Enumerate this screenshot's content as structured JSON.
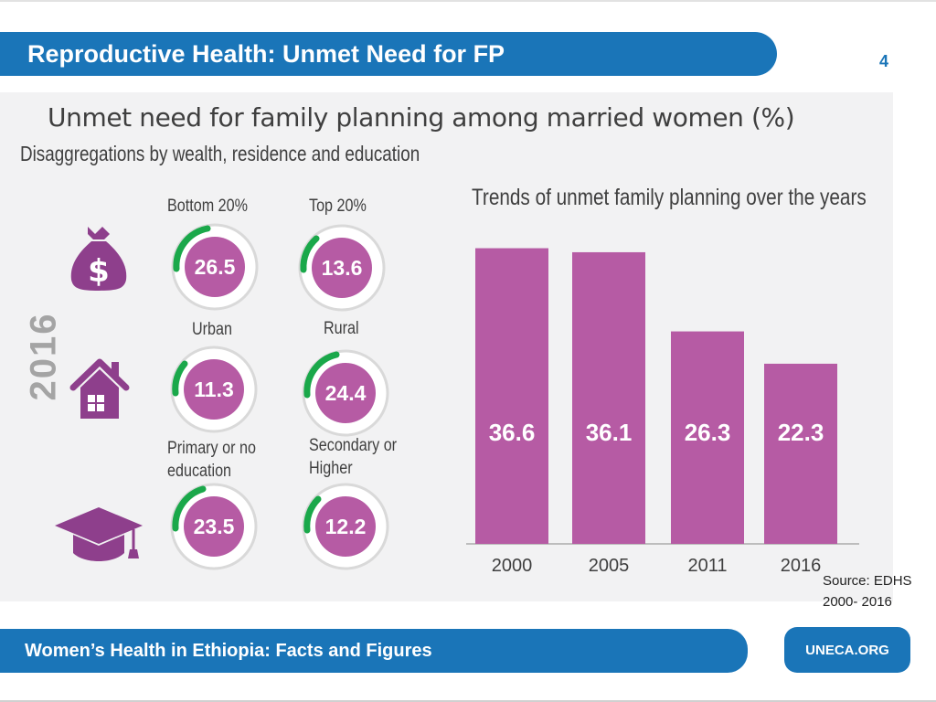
{
  "slide": {
    "title": "Reproductive Health: Unmet Need for FP",
    "page_number": "4",
    "footer": "Women’s Health in Ethiopia: Facts and Figures",
    "footer_link": "UNECA.ORG",
    "source_line1": "Source: EDHS",
    "source_line2": "2000- 2016"
  },
  "infographic": {
    "title": "Unmet need for family planning among married women (%)",
    "subtitle": "Disaggregations by wealth, residence and education",
    "year": "2016",
    "groups": [
      {
        "icon": "money-bag-icon",
        "items": [
          {
            "label": "Bottom 20%",
            "value": "26.5"
          },
          {
            "label": "Top 20%",
            "value": "13.6"
          }
        ]
      },
      {
        "icon": "house-icon",
        "items": [
          {
            "label": "Urban",
            "value": "11.3"
          },
          {
            "label": "Rural",
            "value": "24.4"
          }
        ]
      },
      {
        "icon": "graduation-cap-icon",
        "items": [
          {
            "label": "Primary or no education",
            "value": "23.5"
          },
          {
            "label": "Secondary or Higher",
            "value": "12.2"
          }
        ]
      }
    ]
  },
  "colors": {
    "blue": "#1a75b8",
    "purple": "#b65ba4",
    "green": "#1aa84a",
    "ring": "#d9d9d9",
    "text": "#3f3f3f"
  },
  "chart_data": {
    "type": "bar",
    "title": "Trends of unmet family planning over the years",
    "categories": [
      "2000",
      "2005",
      "2011",
      "2016"
    ],
    "values": [
      36.6,
      36.1,
      26.3,
      22.3
    ],
    "value_labels": [
      "36.6",
      "36.1",
      "26.3",
      "22.3"
    ],
    "xlabel": "",
    "ylabel": "",
    "ylim": [
      0,
      37
    ],
    "grid": false,
    "legend": "none"
  }
}
